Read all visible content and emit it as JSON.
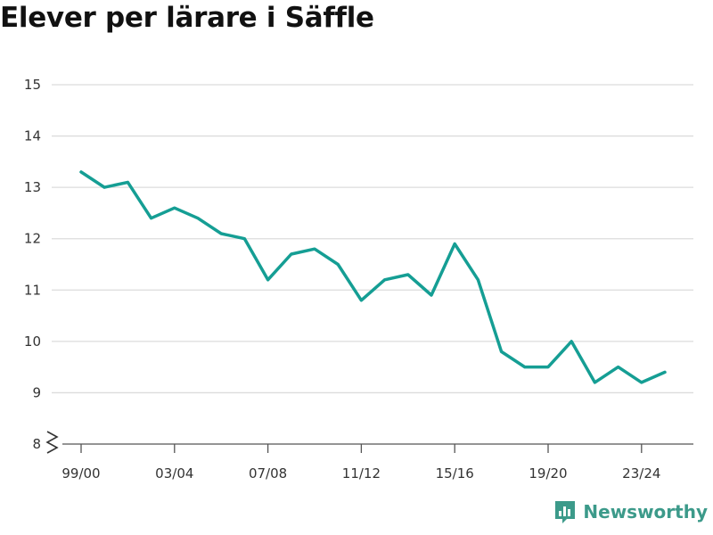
{
  "chart_data": {
    "type": "line",
    "title": "Elever per lärare i Säffle",
    "xlabel": "",
    "ylabel": "",
    "x": [
      "99/00",
      "00/01",
      "01/02",
      "02/03",
      "03/04",
      "04/05",
      "05/06",
      "06/07",
      "07/08",
      "08/09",
      "09/10",
      "10/11",
      "11/12",
      "12/13",
      "13/14",
      "14/15",
      "15/16",
      "16/17",
      "17/18",
      "18/19",
      "19/20",
      "20/21",
      "21/22",
      "22/23",
      "23/24",
      "24/25"
    ],
    "x_tick_labels": [
      "99/00",
      "03/04",
      "07/08",
      "11/12",
      "15/16",
      "19/20",
      "23/24"
    ],
    "y_tick_labels": [
      "8",
      "9",
      "10",
      "11",
      "12",
      "13",
      "14",
      "15"
    ],
    "series": [
      {
        "values": [
          13.3,
          13.0,
          13.1,
          12.4,
          12.6,
          12.4,
          12.1,
          12.0,
          11.2,
          11.7,
          11.8,
          11.5,
          10.8,
          11.2,
          11.3,
          10.9,
          11.9,
          11.2,
          9.8,
          9.5,
          9.5,
          10.0,
          9.2,
          9.5,
          9.2,
          9.4
        ]
      }
    ],
    "ylim": [
      8,
      15
    ],
    "axis_break": true,
    "grid": true,
    "line_color": "#159e94"
  },
  "branding": {
    "name": "Newsworthy",
    "color": "#3c9a8a"
  }
}
